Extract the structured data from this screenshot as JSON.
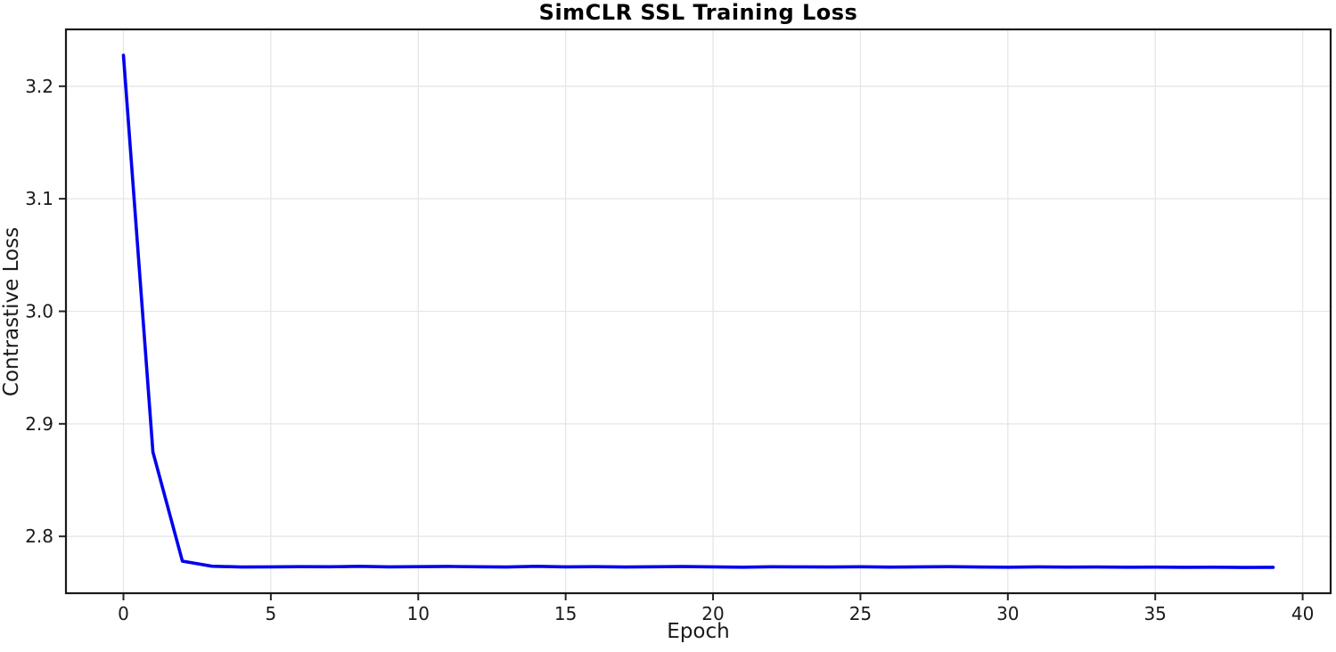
{
  "chart": {
    "title": "SimCLR SSL Training Loss",
    "xlabel": "Epoch",
    "ylabel": "Contrastive Loss"
  },
  "chart_data": {
    "type": "line",
    "title": "SimCLR SSL Training Loss",
    "xlabel": "Epoch",
    "ylabel": "Contrastive Loss",
    "x": [
      0,
      1,
      2,
      3,
      4,
      5,
      6,
      7,
      8,
      9,
      10,
      11,
      12,
      13,
      14,
      15,
      16,
      17,
      18,
      19,
      20,
      21,
      22,
      23,
      24,
      25,
      26,
      27,
      28,
      29,
      30,
      31,
      32,
      33,
      34,
      35,
      36,
      37,
      38,
      39
    ],
    "series": [
      {
        "name": "contrastive-loss",
        "color": "#0000ee",
        "values": [
          3.2275,
          2.875,
          2.778,
          2.7735,
          2.7728,
          2.7729,
          2.7731,
          2.773,
          2.7734,
          2.7729,
          2.7731,
          2.7733,
          2.773,
          2.7728,
          2.7734,
          2.7729,
          2.7731,
          2.7728,
          2.773,
          2.7732,
          2.7729,
          2.7726,
          2.773,
          2.7729,
          2.7728,
          2.773,
          2.7727,
          2.7729,
          2.7731,
          2.7728,
          2.7726,
          2.7729,
          2.7727,
          2.7728,
          2.7726,
          2.7727,
          2.7725,
          2.7726,
          2.7724,
          2.7725
        ]
      }
    ],
    "xlim": [
      -1.95,
      40.95
    ],
    "ylim": [
      2.7495,
      3.2505
    ],
    "xticks": [
      0,
      5,
      10,
      15,
      20,
      25,
      30,
      35,
      40
    ],
    "yticks": [
      2.8,
      2.9,
      3.0,
      3.1,
      3.2
    ],
    "ytick_labels": [
      "2.8",
      "2.9",
      "3.0",
      "3.1",
      "3.2"
    ],
    "grid": true,
    "legend_position": "none",
    "line_color": "#0000ee",
    "grid_color": "#e6e6e6",
    "frame_color": "#1a1a1a",
    "tick_color": "#262626",
    "text_color": "#1a1a1a",
    "background_color": "#ffffff"
  }
}
